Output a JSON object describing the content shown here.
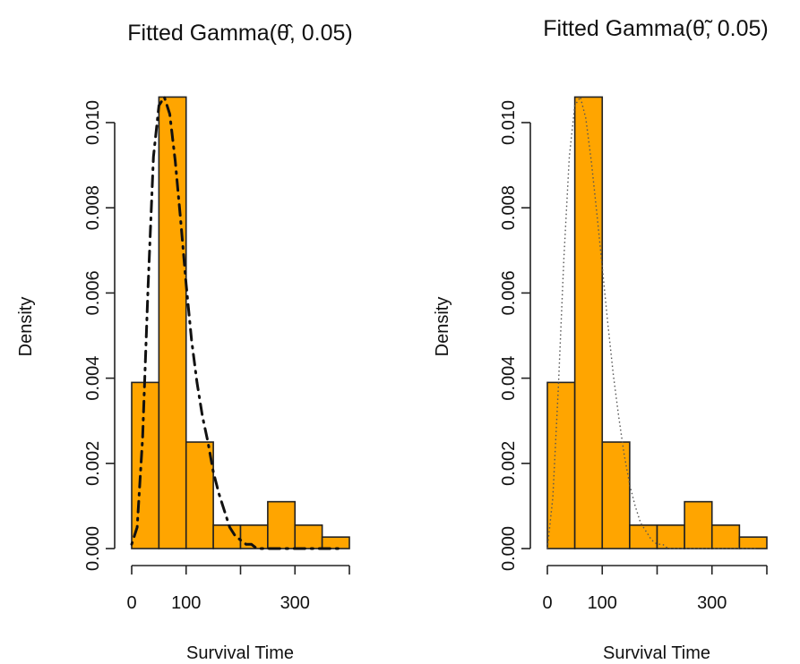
{
  "chart_data": [
    {
      "type": "bar",
      "title": "Fitted Gamma(θ̂, 0.05)",
      "xlabel": "Survival Time",
      "ylabel": "Density",
      "xlim": [
        0,
        400
      ],
      "ylim": [
        0,
        0.0105
      ],
      "xticks": [
        "0",
        "100",
        "300"
      ],
      "yticks": [
        "0.000",
        "0.002",
        "0.004",
        "0.006",
        "0.008",
        "0.010"
      ],
      "bins": [
        [
          0,
          50
        ],
        [
          50,
          100
        ],
        [
          100,
          150
        ],
        [
          150,
          200
        ],
        [
          200,
          250
        ],
        [
          250,
          300
        ],
        [
          300,
          350
        ],
        [
          350,
          400
        ]
      ],
      "values": [
        0.0039,
        0.0106,
        0.0025,
        0.00055,
        0.00055,
        0.0011,
        0.00055,
        0.00027
      ],
      "bar_color": "#FFA500",
      "curve_style": "dotdash",
      "curve": {
        "x": [
          0,
          10,
          20,
          30,
          40,
          50,
          60,
          70,
          80,
          90,
          100,
          110,
          120,
          130,
          140,
          150,
          160,
          170,
          180,
          190,
          200,
          210,
          220,
          230,
          240,
          250,
          260,
          270,
          280,
          290,
          300,
          310,
          320,
          330,
          340,
          350,
          360,
          370,
          380
        ],
        "y": [
          0.0001,
          0.0005,
          0.0026,
          0.0061,
          0.0092,
          0.0104,
          0.0106,
          0.0102,
          0.0091,
          0.0077,
          0.0062,
          0.0049,
          0.0039,
          0.0031,
          0.0025,
          0.0018,
          0.0013,
          0.0009,
          0.0005,
          0.0003,
          0.0002,
          0.0001,
          0.0001,
          0.0,
          0.0,
          0.0,
          0.0,
          0.0,
          0.0,
          0.0,
          0.0,
          0.0,
          0.0,
          0.0,
          0.0,
          0.0,
          0.0,
          0.0,
          0.0
        ]
      }
    },
    {
      "type": "bar",
      "title": "Fitted Gamma(θ̃, 0.05)",
      "xlabel": "Survival Time",
      "ylabel": "Density",
      "xlim": [
        0,
        400
      ],
      "ylim": [
        0,
        0.0105
      ],
      "xticks": [
        "0",
        "100",
        "300"
      ],
      "yticks": [
        "0.000",
        "0.002",
        "0.004",
        "0.006",
        "0.008",
        "0.010"
      ],
      "bins": [
        [
          0,
          50
        ],
        [
          50,
          100
        ],
        [
          100,
          150
        ],
        [
          150,
          200
        ],
        [
          200,
          250
        ],
        [
          250,
          300
        ],
        [
          300,
          350
        ],
        [
          350,
          400
        ]
      ],
      "values": [
        0.0039,
        0.0106,
        0.0025,
        0.00055,
        0.00055,
        0.0011,
        0.00055,
        0.00027
      ],
      "bar_color": "#FFA500",
      "curve_style": "dotted",
      "curve": {
        "x": [
          0,
          10,
          20,
          30,
          40,
          50,
          60,
          70,
          80,
          90,
          100,
          110,
          120,
          130,
          140,
          150,
          160,
          170,
          180,
          190,
          200,
          210,
          220,
          230,
          240,
          250,
          260,
          270,
          280,
          290,
          300,
          310,
          320,
          330,
          340,
          350,
          360,
          370,
          380
        ],
        "y": [
          0.0,
          0.0012,
          0.0038,
          0.0068,
          0.0092,
          0.0104,
          0.0106,
          0.0101,
          0.0091,
          0.0079,
          0.0066,
          0.0053,
          0.0041,
          0.0031,
          0.0022,
          0.0015,
          0.001,
          0.0006,
          0.0004,
          0.0002,
          0.0001,
          0.0001,
          0.0,
          0.0,
          0.0,
          0.0,
          0.0,
          0.0,
          0.0,
          0.0,
          0.0,
          0.0,
          0.0,
          0.0,
          0.0,
          0.0,
          0.0,
          0.0,
          0.0
        ]
      }
    }
  ]
}
